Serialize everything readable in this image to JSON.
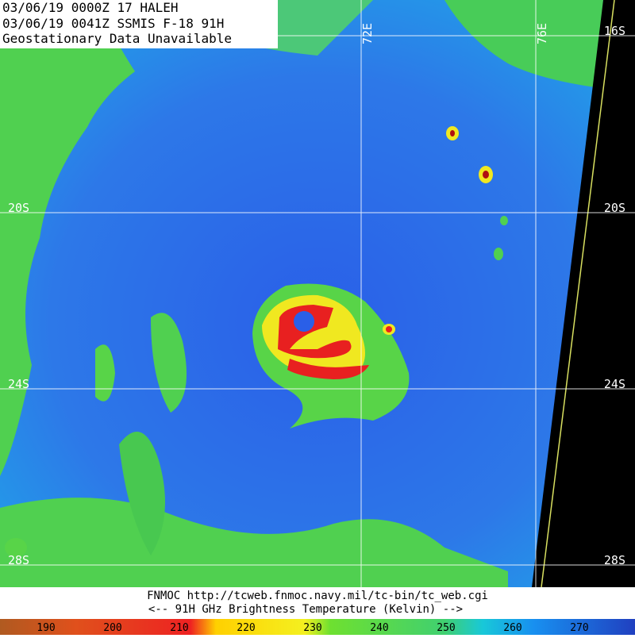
{
  "header": {
    "lines": [
      "03/06/19 0000Z  17 HALEH",
      "03/06/19 0041Z  SSMIS F-18 91H",
      "Geostationary Data Unavailable"
    ]
  },
  "grid_labels": {
    "lon": [
      "72E",
      "76E"
    ],
    "lat": [
      "16S",
      "20S",
      "24S",
      "28S"
    ]
  },
  "footer": {
    "source": "FNMOC  http://tcweb.fnmoc.navy.mil/tc-bin/tc_web.cgi",
    "legend_title": "<--   91H GHz Brightness Temperature (Kelvin)   -->"
  },
  "colorbar": {
    "ticks": [
      190,
      200,
      210,
      220,
      230,
      240,
      250,
      260,
      270
    ]
  }
}
